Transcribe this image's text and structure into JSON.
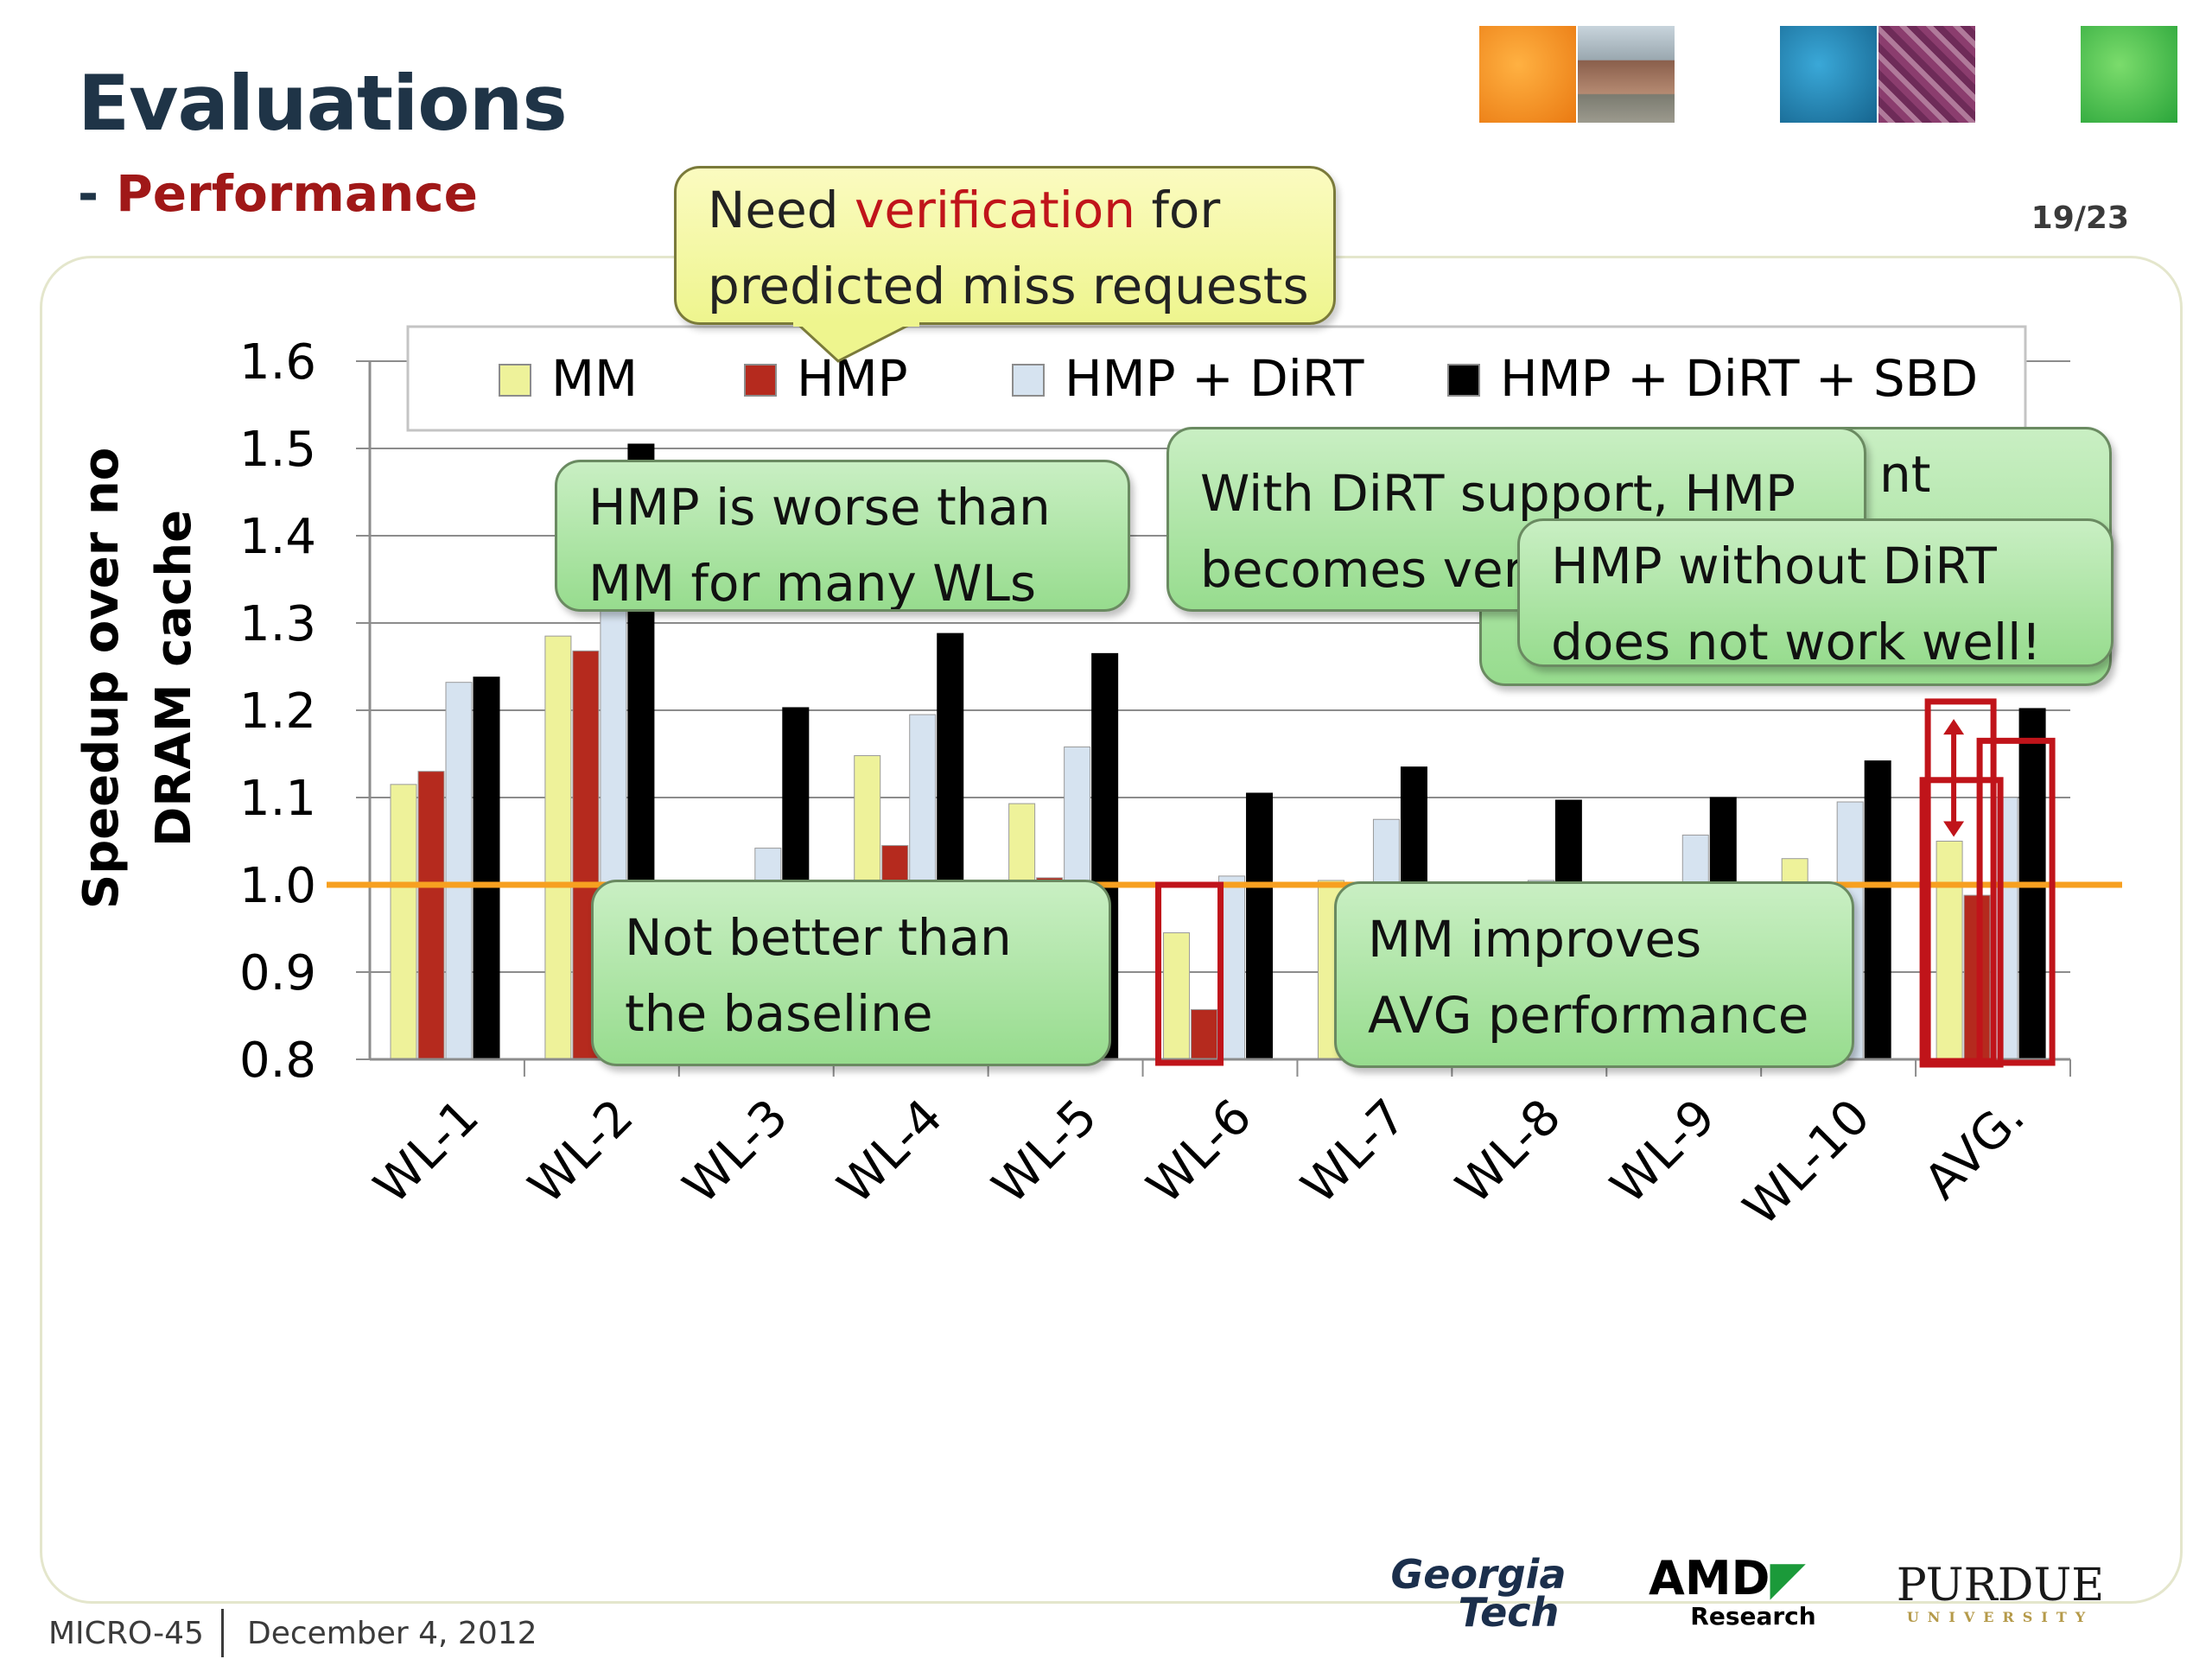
{
  "slide": {
    "title": "Evaluations",
    "subtitle_prefix": "- ",
    "subtitle": "Performance",
    "page": "19/23"
  },
  "footer": {
    "venue": "MICRO-45",
    "date": "December 4, 2012"
  },
  "logos": {
    "georgia_tech_line1": "Georgia",
    "georgia_tech_line2": "Tech",
    "amd": "AMD",
    "amd_sub": "Research",
    "purdue": "PURDUE",
    "purdue_sub": "UNIVERSITY"
  },
  "callouts": {
    "need_verification_1": "Need ",
    "need_verification_red": "verification",
    "need_verification_2": " for",
    "need_verification_line2": "predicted miss requests",
    "hmp_worse_line1": "HMP is worse than",
    "hmp_worse_line2": "MM for many WLs",
    "back_fragment_1": "nt",
    "dirt_support_line1": "With DiRT support, HMP",
    "dirt_support_line2": "becomes ver",
    "without_dirt_line1": "HMP without DiRT",
    "without_dirt_line2": "does not work well!",
    "not_better_line1": "Not better than",
    "not_better_line2": "the baseline",
    "mm_improves_line1": "MM improves",
    "mm_improves_line2": "AVG performance"
  },
  "colors": {
    "mm": "#eef29a",
    "hmp": "#b52a1e",
    "hmp_dirt": "#d6e3f0",
    "hmp_dirt_sbd": "#000000",
    "baseline": "#f7a020",
    "highlight_box": "#c0141a"
  },
  "chart_data": {
    "type": "bar",
    "ylabel_line1": "Speedup over no",
    "ylabel_line2": "DRAM cache",
    "ylim": [
      0.8,
      1.6
    ],
    "yticks": [
      "0.8",
      "0.9",
      "1.0",
      "1.1",
      "1.2",
      "1.3",
      "1.4",
      "1.5",
      "1.6"
    ],
    "categories": [
      "WL-1",
      "WL-2",
      "WL-3",
      "WL-4",
      "WL-5",
      "WL-6",
      "WL-7",
      "WL-8",
      "WL-9",
      "WL-10",
      "AVG."
    ],
    "series": [
      {
        "name": "MM",
        "values": [
          1.115,
          1.285,
          0.99,
          1.148,
          1.093,
          0.945,
          1.005,
          0.99,
          0.99,
          1.03,
          1.05
        ]
      },
      {
        "name": "HMP",
        "values": [
          1.13,
          1.268,
          0.99,
          1.045,
          1.008,
          0.857,
          0.99,
          0.99,
          0.99,
          0.99,
          0.988
        ]
      },
      {
        "name": "HMP + DiRT",
        "values": [
          1.232,
          1.32,
          1.042,
          1.195,
          1.158,
          1.01,
          1.075,
          1.005,
          1.057,
          1.095,
          1.1
        ]
      },
      {
        "name": "HMP + DiRT + SBD",
        "values": [
          1.238,
          1.505,
          1.203,
          1.288,
          1.265,
          1.105,
          1.135,
          1.097,
          1.1,
          1.142,
          1.202
        ]
      }
    ],
    "baseline": 1.0,
    "grid": true,
    "legend": "top"
  }
}
